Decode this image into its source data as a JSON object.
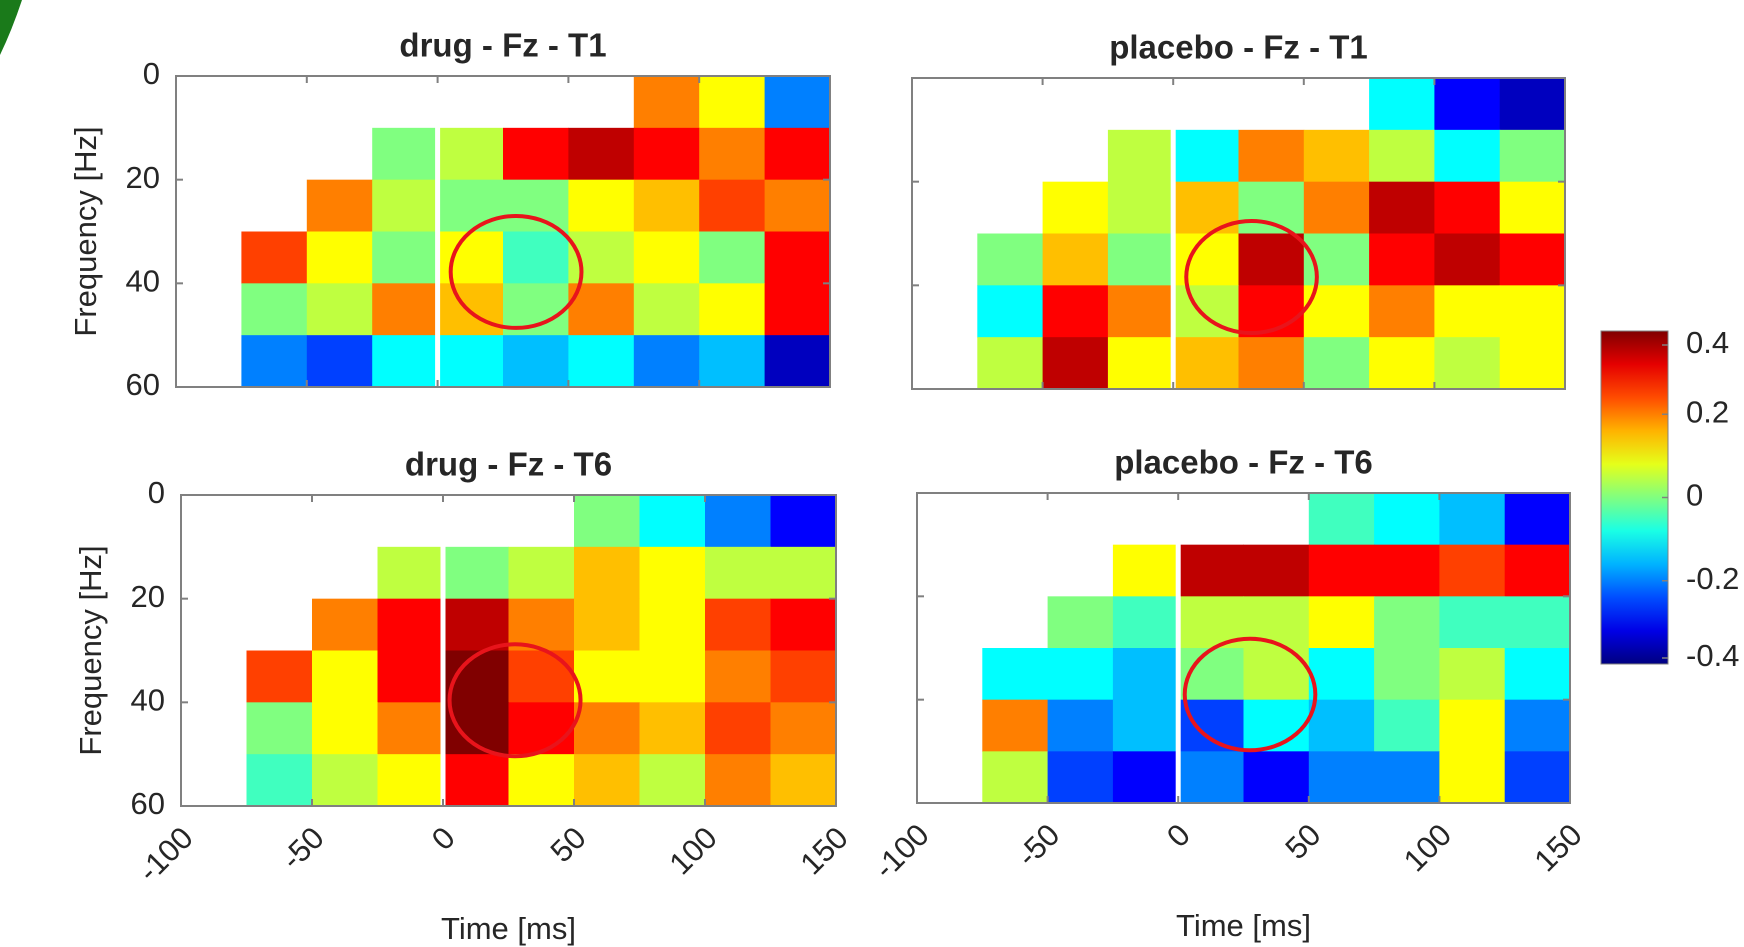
{
  "chart_data": [
    {
      "type": "heatmap",
      "title": "drug - Fz - T1",
      "ylabel": "Frequency [Hz]",
      "xlim": [
        -100,
        150
      ],
      "xticks": [
        -100,
        -50,
        0,
        50,
        100,
        150
      ],
      "xticklabels": false,
      "ylim": [
        0,
        60
      ],
      "yticks": [
        0,
        20,
        40,
        60
      ],
      "yticklabels": true,
      "y_inverted": true,
      "vline_x": 0,
      "xbins": [
        -100,
        -75,
        -50,
        -25,
        0,
        25,
        50,
        75,
        100,
        125,
        150
      ],
      "ybins": [
        0,
        10,
        20,
        30,
        40,
        50,
        60
      ],
      "z": [
        [
          null,
          null,
          null,
          null,
          null,
          null,
          null,
          0.2,
          0.1,
          -0.2
        ],
        [
          null,
          null,
          null,
          0,
          0.05,
          0.3,
          0.35,
          0.3,
          0.2,
          0.3
        ],
        [
          null,
          null,
          0.2,
          0.05,
          0,
          0,
          0.1,
          0.15,
          0.25,
          0.2
        ],
        [
          null,
          0.25,
          0.1,
          0,
          0.1,
          -0.05,
          0.05,
          0.1,
          0,
          0.3
        ],
        [
          null,
          0,
          0.05,
          0.2,
          0.15,
          0,
          0.2,
          0.05,
          0.1,
          0.3
        ],
        [
          null,
          -0.2,
          -0.25,
          -0.1,
          -0.1,
          -0.15,
          -0.1,
          -0.2,
          -0.15,
          -0.35
        ]
      ]
    },
    {
      "type": "heatmap",
      "title": "placebo - Fz - T1",
      "xlim": [
        -100,
        150
      ],
      "xticks": [
        -100,
        -50,
        0,
        50,
        100,
        150
      ],
      "xticklabels": false,
      "ylim": [
        0,
        60
      ],
      "yticks": [
        0,
        20,
        40,
        60
      ],
      "yticklabels": false,
      "y_inverted": true,
      "vline_x": 0,
      "xbins": [
        -100,
        -75,
        -50,
        -25,
        0,
        25,
        50,
        75,
        100,
        125,
        150
      ],
      "ybins": [
        0,
        10,
        20,
        30,
        40,
        50,
        60
      ],
      "z": [
        [
          null,
          null,
          null,
          null,
          null,
          null,
          null,
          -0.1,
          -0.3,
          -0.35
        ],
        [
          null,
          null,
          null,
          0.05,
          -0.1,
          0.2,
          0.15,
          0.05,
          -0.1,
          0
        ],
        [
          null,
          null,
          0.1,
          0.05,
          0.15,
          0,
          0.2,
          0.35,
          0.3,
          0.1
        ],
        [
          null,
          0,
          0.15,
          0,
          0.1,
          0.35,
          0,
          0.3,
          0.35,
          0.3
        ],
        [
          null,
          -0.1,
          0.3,
          0.2,
          0.05,
          0.3,
          0.1,
          0.2,
          0.1,
          0.1
        ],
        [
          null,
          0.05,
          0.35,
          0.1,
          0.15,
          0.2,
          0,
          0.1,
          0.05,
          0.1
        ]
      ]
    },
    {
      "type": "heatmap",
      "title": "drug - Fz - T6",
      "xlabel": "Time [ms]",
      "ylabel": "Frequency [Hz]",
      "xlim": [
        -100,
        150
      ],
      "xticks": [
        -100,
        -50,
        0,
        50,
        100,
        150
      ],
      "xticklabels": true,
      "ylim": [
        0,
        60
      ],
      "yticks": [
        0,
        20,
        40,
        60
      ],
      "yticklabels": true,
      "y_inverted": true,
      "vline_x": 0,
      "xbins": [
        -100,
        -75,
        -50,
        -25,
        0,
        25,
        50,
        75,
        100,
        125,
        150
      ],
      "ybins": [
        0,
        10,
        20,
        30,
        40,
        50,
        60
      ],
      "z": [
        [
          null,
          null,
          null,
          null,
          null,
          null,
          0,
          -0.1,
          -0.2,
          -0.3
        ],
        [
          null,
          null,
          null,
          0.05,
          0,
          0.05,
          0.15,
          0.1,
          0.05,
          0.05
        ],
        [
          null,
          null,
          0.2,
          0.3,
          0.35,
          0.2,
          0.15,
          0.1,
          0.25,
          0.3
        ],
        [
          null,
          0.25,
          0.1,
          0.3,
          0.4,
          0.25,
          0.1,
          0.1,
          0.2,
          0.25
        ],
        [
          null,
          0,
          0.1,
          0.2,
          0.4,
          0.3,
          0.2,
          0.15,
          0.25,
          0.2
        ],
        [
          null,
          -0.05,
          0.05,
          0.1,
          0.3,
          0.1,
          0.15,
          0.05,
          0.2,
          0.15
        ]
      ]
    },
    {
      "type": "heatmap",
      "title": "placebo - Fz - T6",
      "xlabel": "Time [ms]",
      "xlim": [
        -100,
        150
      ],
      "xticks": [
        -100,
        -50,
        0,
        50,
        100,
        150
      ],
      "xticklabels": true,
      "ylim": [
        0,
        60
      ],
      "yticks": [
        0,
        20,
        40,
        60
      ],
      "yticklabels": false,
      "y_inverted": true,
      "vline_x": 0,
      "xbins": [
        -100,
        -75,
        -50,
        -25,
        0,
        25,
        50,
        75,
        100,
        125,
        150
      ],
      "ybins": [
        0,
        10,
        20,
        30,
        40,
        50,
        60
      ],
      "z": [
        [
          null,
          null,
          null,
          null,
          null,
          null,
          -0.05,
          -0.1,
          -0.15,
          -0.3
        ],
        [
          null,
          null,
          null,
          0.1,
          0.35,
          0.35,
          0.3,
          0.3,
          0.25,
          0.3
        ],
        [
          null,
          null,
          0,
          -0.05,
          0.05,
          0.05,
          0.1,
          0,
          -0.05,
          -0.05
        ],
        [
          null,
          -0.1,
          -0.1,
          -0.15,
          0,
          0.05,
          -0.1,
          0,
          0.05,
          -0.1
        ],
        [
          null,
          0.2,
          -0.2,
          -0.15,
          -0.25,
          -0.1,
          -0.15,
          -0.05,
          0.1,
          -0.2
        ],
        [
          null,
          0.05,
          -0.25,
          -0.3,
          -0.2,
          -0.3,
          -0.2,
          -0.2,
          0.1,
          -0.25
        ]
      ]
    }
  ],
  "colorbar": {
    "clim": [
      -0.4,
      0.4
    ],
    "ticks": [
      0.4,
      0.2,
      0,
      -0.2,
      -0.4
    ],
    "colormap": "jet"
  }
}
